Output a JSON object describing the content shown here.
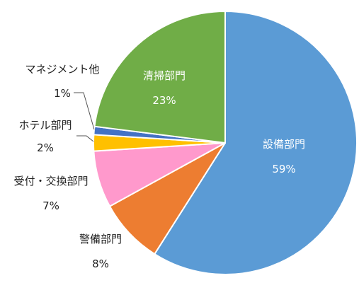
{
  "chart_data": {
    "type": "pie",
    "title": "",
    "start_angle_deg": 0,
    "direction": "clockwise",
    "slices": [
      {
        "name": "設備部門",
        "value": 59,
        "label": "59%",
        "color": "#5B9BD5"
      },
      {
        "name": "警備部門",
        "value": 8,
        "label": "8%",
        "color": "#ED7D31"
      },
      {
        "name": "受付・交換部門",
        "value": 7,
        "label": "7%",
        "color": "#FF99CC"
      },
      {
        "name": "ホテル部門",
        "value": 2,
        "label": "2%",
        "color": "#FFC000"
      },
      {
        "name": "マネジメント他",
        "value": 1,
        "label": "1%",
        "color": "#4472C4"
      },
      {
        "name": "清掃部門",
        "value": 23,
        "label": "23%",
        "color": "#70AD47"
      }
    ],
    "legend": "none"
  }
}
